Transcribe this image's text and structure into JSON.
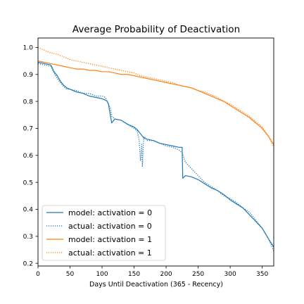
{
  "chart_data": {
    "type": "line",
    "title": "Average Probability of Deactivation",
    "xlabel": "Days Until Deactivation (365 - Recency)",
    "ylabel": "",
    "xlim": [
      0,
      368
    ],
    "ylim": [
      0.19,
      1.035
    ],
    "xticks": [
      0,
      50,
      100,
      150,
      200,
      250,
      300,
      350
    ],
    "yticks": [
      0.2,
      0.3,
      0.4,
      0.5,
      0.6,
      0.7,
      0.8,
      0.9,
      1.0
    ],
    "ytick_labels": [
      "0.2",
      "0.3",
      "0.4",
      "0.5",
      "0.6",
      "0.7",
      "0.8",
      "0.9",
      "1.0"
    ],
    "grid": false,
    "legend_position": "lower-left",
    "colors": {
      "blue": "#1f77b4",
      "orange": "#ff7f0e"
    },
    "series": [
      {
        "name": "model: activation = 0",
        "color": "#1f77b4",
        "style": "solid",
        "x": [
          0,
          10,
          20,
          25,
          30,
          35,
          40,
          45,
          50,
          60,
          70,
          80,
          90,
          100,
          105,
          108,
          110,
          115,
          120,
          130,
          140,
          150,
          155,
          160,
          165,
          170,
          180,
          190,
          200,
          210,
          220,
          225,
          226,
          230,
          240,
          250,
          260,
          270,
          280,
          290,
          300,
          310,
          320,
          330,
          340,
          350,
          360,
          368
        ],
        "y": [
          0.945,
          0.94,
          0.935,
          0.91,
          0.895,
          0.875,
          0.86,
          0.85,
          0.845,
          0.835,
          0.83,
          0.82,
          0.815,
          0.81,
          0.805,
          0.8,
          0.79,
          0.72,
          0.735,
          0.73,
          0.715,
          0.705,
          0.695,
          0.68,
          0.665,
          0.66,
          0.655,
          0.645,
          0.64,
          0.635,
          0.63,
          0.63,
          0.515,
          0.525,
          0.52,
          0.51,
          0.495,
          0.48,
          0.47,
          0.455,
          0.435,
          0.42,
          0.405,
          0.38,
          0.355,
          0.33,
          0.29,
          0.26
        ]
      },
      {
        "name": "actual: activation = 0",
        "color": "#1f77b4",
        "style": "dotted",
        "x": [
          0,
          10,
          20,
          25,
          30,
          35,
          40,
          45,
          50,
          60,
          70,
          80,
          90,
          100,
          105,
          108,
          110,
          113,
          115,
          120,
          130,
          140,
          150,
          155,
          158,
          160,
          162,
          163,
          165,
          168,
          170,
          180,
          190,
          200,
          210,
          220,
          225,
          230,
          240,
          250,
          260,
          270,
          280,
          290,
          300,
          310,
          320,
          330,
          340,
          350,
          360,
          368
        ],
        "y": [
          0.94,
          0.935,
          0.93,
          0.905,
          0.885,
          0.87,
          0.855,
          0.845,
          0.845,
          0.84,
          0.83,
          0.83,
          0.82,
          0.82,
          0.815,
          0.8,
          0.79,
          0.775,
          0.745,
          0.735,
          0.73,
          0.715,
          0.7,
          0.69,
          0.655,
          0.58,
          0.64,
          0.56,
          0.67,
          0.665,
          0.655,
          0.655,
          0.645,
          0.635,
          0.63,
          0.62,
          0.61,
          0.575,
          0.55,
          0.525,
          0.5,
          0.485,
          0.47,
          0.45,
          0.44,
          0.425,
          0.405,
          0.39,
          0.36,
          0.33,
          0.29,
          0.245
        ]
      },
      {
        "name": "model: activation = 1",
        "color": "#ff7f0e",
        "style": "solid",
        "x": [
          0,
          10,
          20,
          30,
          40,
          50,
          60,
          70,
          80,
          90,
          100,
          110,
          120,
          130,
          140,
          150,
          160,
          170,
          180,
          190,
          200,
          210,
          220,
          230,
          240,
          250,
          260,
          270,
          280,
          290,
          300,
          310,
          320,
          330,
          340,
          350,
          360,
          368
        ],
        "y": [
          0.95,
          0.945,
          0.94,
          0.935,
          0.93,
          0.925,
          0.92,
          0.92,
          0.915,
          0.915,
          0.91,
          0.91,
          0.905,
          0.9,
          0.9,
          0.895,
          0.89,
          0.885,
          0.88,
          0.875,
          0.87,
          0.865,
          0.86,
          0.855,
          0.85,
          0.84,
          0.83,
          0.82,
          0.81,
          0.8,
          0.785,
          0.77,
          0.755,
          0.74,
          0.72,
          0.7,
          0.67,
          0.64
        ]
      },
      {
        "name": "actual: activation = 1",
        "color": "#ff7f0e",
        "style": "dotted",
        "x": [
          0,
          10,
          20,
          30,
          40,
          50,
          60,
          70,
          80,
          90,
          100,
          110,
          120,
          130,
          140,
          150,
          160,
          170,
          180,
          190,
          200,
          210,
          220,
          230,
          240,
          250,
          260,
          270,
          280,
          290,
          300,
          310,
          320,
          330,
          340,
          350,
          360,
          368
        ],
        "y": [
          1.0,
          0.99,
          0.98,
          0.975,
          0.965,
          0.955,
          0.95,
          0.945,
          0.94,
          0.935,
          0.93,
          0.925,
          0.92,
          0.915,
          0.91,
          0.905,
          0.895,
          0.89,
          0.885,
          0.88,
          0.875,
          0.87,
          0.86,
          0.855,
          0.85,
          0.84,
          0.835,
          0.825,
          0.815,
          0.8,
          0.79,
          0.775,
          0.76,
          0.745,
          0.725,
          0.705,
          0.67,
          0.63
        ]
      }
    ]
  }
}
